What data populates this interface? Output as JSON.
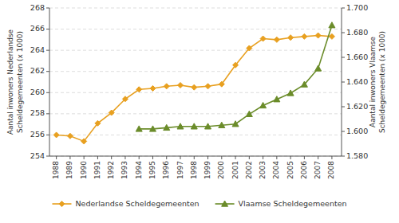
{
  "chart_data": {
    "type": "line",
    "x": [
      1988,
      1989,
      1990,
      1991,
      1992,
      1993,
      1994,
      1995,
      1996,
      1997,
      1998,
      1999,
      2000,
      2001,
      2002,
      2003,
      2004,
      2005,
      2006,
      2007,
      2008
    ],
    "xlim": [
      1987.5,
      2008.7
    ],
    "xticks": [
      1988,
      1989,
      1990,
      1991,
      1992,
      1993,
      1994,
      1995,
      1996,
      1997,
      1998,
      1999,
      2000,
      2001,
      2002,
      2003,
      2004,
      2005,
      2006,
      2007,
      2008
    ],
    "ylabel": "Aantal inwoners Nederlandse\nScheldegemeenten (x 1000)",
    "y2label": "Aantal inwoners Vlaamse\nScheldegemeenten (x 1000)",
    "ylim": [
      254,
      268
    ],
    "yticks": [
      254,
      256,
      258,
      260,
      262,
      264,
      266,
      268
    ],
    "y2lim": [
      1.58,
      1.7
    ],
    "y2ticks": [
      {
        "value": 1.58,
        "label": "1.580"
      },
      {
        "value": 1.6,
        "label": "1.600"
      },
      {
        "value": 1.62,
        "label": "1.620"
      },
      {
        "value": 1.64,
        "label": "1.640"
      },
      {
        "value": 1.66,
        "label": "1.660"
      },
      {
        "value": 1.68,
        "label": "1.680"
      },
      {
        "value": 1.7,
        "label": "1.700"
      }
    ],
    "grid": true,
    "legend": "bottom",
    "series": [
      {
        "name": "Nederlandse Scheldegemeenten",
        "color": "#E8A020",
        "marker": "diamond",
        "values": [
          256.0,
          255.9,
          255.4,
          257.1,
          258.1,
          259.4,
          260.3,
          260.4,
          260.6,
          260.7,
          260.5,
          260.6,
          260.8,
          262.6,
          264.2,
          265.1,
          265.0,
          265.2,
          265.3,
          265.4,
          265.3
        ]
      },
      {
        "name": "Vlaamse Scheldegemeenten",
        "color": "#6B8C2A",
        "marker": "triangle",
        "axis": "y2",
        "values": [
          null,
          null,
          null,
          null,
          null,
          null,
          1.602,
          1.602,
          1.603,
          1.604,
          1.604,
          1.604,
          1.605,
          1.606,
          1.614,
          1.621,
          1.626,
          1.631,
          1.638,
          1.651,
          1.686
        ]
      }
    ]
  }
}
